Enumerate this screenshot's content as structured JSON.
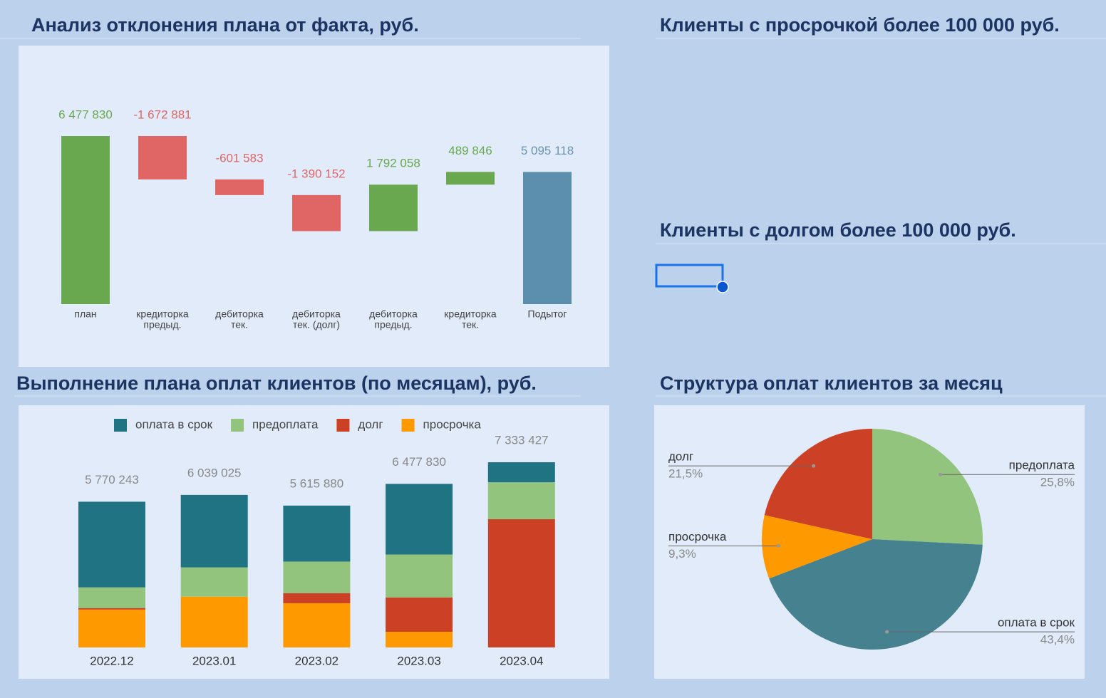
{
  "headings": [
    "Клиенты с просрочкой более 100 000 руб.",
    "Клиенты с долгом более 100 000 руб."
  ],
  "chart_data": [
    {
      "type": "waterfall",
      "title": "Анализ отклонения плана от факта, руб.",
      "categories": [
        [
          "план"
        ],
        [
          "кредиторка",
          "предыд."
        ],
        [
          "дебиторка",
          "тек."
        ],
        [
          "дебиторка",
          "тек. (долг)"
        ],
        [
          "дебиторка",
          "предыд."
        ],
        [
          "кредиторка",
          "тек."
        ],
        [
          "Подытог"
        ]
      ],
      "values": [
        6477830,
        -1672881,
        -601583,
        -1390152,
        1792058,
        489846,
        5095118
      ],
      "value_labels": [
        "6 477 830",
        "-1 672 881",
        "-601 583",
        "-1 390 152",
        "1 792 058",
        "489 846",
        "5 095 118"
      ],
      "totals_at": [
        6
      ],
      "colors": {
        "increase": "#6aa84f",
        "decrease": "#e06666",
        "total": "#5b8fad"
      }
    },
    {
      "type": "stacked-bar",
      "title": "Выполнение плана оплат клиентов (по месяцам), руб.",
      "categories": [
        "2022.12",
        "2023.01",
        "2023.02",
        "2023.03",
        "2023.04"
      ],
      "series": [
        {
          "name": "оплата в срок",
          "color": "#1f7383",
          "values": [
            3390243,
            2869025,
            2215880,
            2797830,
            793427
          ]
        },
        {
          "name": "предоплата",
          "color": "#93c47d",
          "values": [
            820000,
            1160000,
            1250000,
            1700000,
            1460000
          ]
        },
        {
          "name": "долг",
          "color": "#cc4125",
          "values": [
            60000,
            0,
            400000,
            1360000,
            5080000
          ]
        },
        {
          "name": "просрочка",
          "color": "#ff9900",
          "values": [
            1500000,
            2010000,
            1750000,
            620000,
            0
          ]
        }
      ],
      "totals": [
        5770243,
        6039025,
        5615880,
        6477830,
        7333427
      ],
      "total_labels": [
        "5 770 243",
        "6 039 025",
        "5 615 880",
        "6 477 830",
        "7 333 427"
      ],
      "legend": "top"
    },
    {
      "type": "pie",
      "title": "Структура оплат клиентов за месяц",
      "categories": [
        "предоплата",
        "оплата в срок",
        "просрочка",
        "долг"
      ],
      "values": [
        25.8,
        43.4,
        9.3,
        21.5
      ],
      "value_labels": [
        "25,8%",
        "43,4%",
        "9,3%",
        "21,5%"
      ],
      "colors": [
        "#93c47d",
        "#45818e",
        "#ff9900",
        "#cc4125"
      ]
    }
  ]
}
